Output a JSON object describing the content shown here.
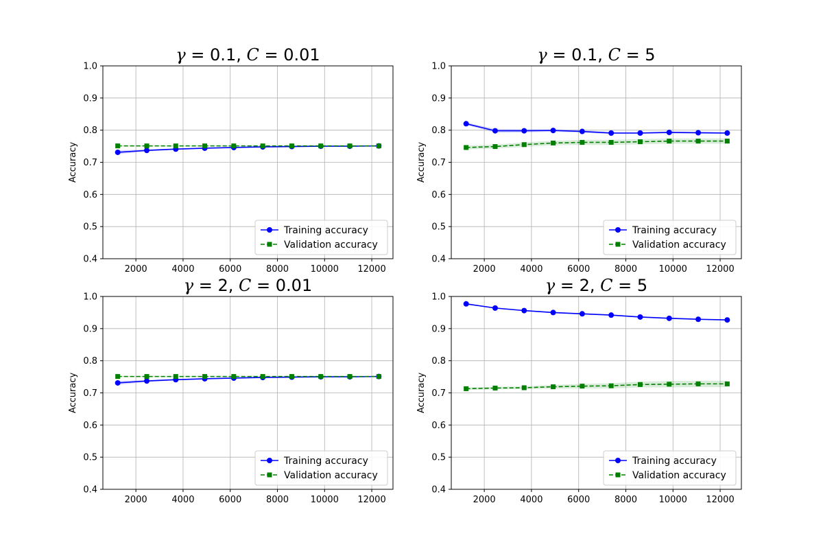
{
  "figure": {
    "background": "#ffffff",
    "grid": true,
    "legend_position": "lower-right"
  },
  "colors": {
    "training": "#0000ff",
    "training_band": "#0000ff",
    "validation": "#008000",
    "validation_band": "#008000",
    "grid": "#b0b0b0"
  },
  "chart_data": [
    {
      "type": "line",
      "title_parts": [
        {
          "t": "γ",
          "i": true
        },
        {
          "t": " = 0.1, ",
          "i": false
        },
        {
          "t": "C",
          "i": true
        },
        {
          "t": " = 0.01",
          "i": false
        }
      ],
      "xlabel": "",
      "ylabel": "Accuracy",
      "ylim": [
        0.4,
        1.0
      ],
      "xlim": [
        600,
        12900
      ],
      "x_ticks": [
        2000,
        4000,
        6000,
        8000,
        10000,
        12000
      ],
      "y_ticks": [
        0.4,
        0.5,
        0.6,
        0.7,
        0.8,
        0.9,
        1.0
      ],
      "x": [
        1230,
        2460,
        3690,
        4920,
        6150,
        7380,
        8610,
        9840,
        11070,
        12300
      ],
      "series": [
        {
          "name": "Training accuracy",
          "style": "solid",
          "marker": "circle",
          "values": [
            0.731,
            0.737,
            0.741,
            0.744,
            0.746,
            0.748,
            0.749,
            0.75,
            0.75,
            0.751
          ],
          "band": [
            0.006,
            0.003,
            0.002,
            0.002,
            0.001,
            0.001,
            0.001,
            0.001,
            0.001,
            0.001
          ]
        },
        {
          "name": "Validation accuracy",
          "style": "dashed",
          "marker": "square",
          "values": [
            0.751,
            0.751,
            0.751,
            0.751,
            0.751,
            0.751,
            0.751,
            0.751,
            0.751,
            0.751
          ],
          "band": [
            0.002,
            0.002,
            0.002,
            0.002,
            0.002,
            0.002,
            0.002,
            0.002,
            0.002,
            0.002
          ]
        }
      ]
    },
    {
      "type": "line",
      "title_parts": [
        {
          "t": "γ",
          "i": true
        },
        {
          "t": " = 0.1, ",
          "i": false
        },
        {
          "t": "C",
          "i": true
        },
        {
          "t": " = 5",
          "i": false
        }
      ],
      "xlabel": "",
      "ylabel": "Accuracy",
      "ylim": [
        0.4,
        1.0
      ],
      "xlim": [
        600,
        12900
      ],
      "x_ticks": [
        2000,
        4000,
        6000,
        8000,
        10000,
        12000
      ],
      "y_ticks": [
        0.4,
        0.5,
        0.6,
        0.7,
        0.8,
        0.9,
        1.0
      ],
      "x": [
        1230,
        2460,
        3690,
        4920,
        6150,
        7380,
        8610,
        9840,
        11070,
        12300
      ],
      "series": [
        {
          "name": "Training accuracy",
          "style": "solid",
          "marker": "circle",
          "values": [
            0.82,
            0.798,
            0.798,
            0.799,
            0.796,
            0.791,
            0.791,
            0.793,
            0.792,
            0.791
          ],
          "band": [
            0.004,
            0.006,
            0.005,
            0.004,
            0.004,
            0.003,
            0.003,
            0.003,
            0.003,
            0.003
          ]
        },
        {
          "name": "Validation accuracy",
          "style": "dashed",
          "marker": "square",
          "values": [
            0.746,
            0.749,
            0.755,
            0.76,
            0.762,
            0.762,
            0.764,
            0.766,
            0.766,
            0.766
          ],
          "band": [
            0.006,
            0.006,
            0.007,
            0.007,
            0.008,
            0.008,
            0.008,
            0.008,
            0.008,
            0.008
          ]
        }
      ]
    },
    {
      "type": "line",
      "title_parts": [
        {
          "t": "γ",
          "i": true
        },
        {
          "t": " = 2, ",
          "i": false
        },
        {
          "t": "C",
          "i": true
        },
        {
          "t": " = 0.01",
          "i": false
        }
      ],
      "xlabel": "",
      "ylabel": "Accuracy",
      "ylim": [
        0.4,
        1.0
      ],
      "xlim": [
        600,
        12900
      ],
      "x_ticks": [
        2000,
        4000,
        6000,
        8000,
        10000,
        12000
      ],
      "y_ticks": [
        0.4,
        0.5,
        0.6,
        0.7,
        0.8,
        0.9,
        1.0
      ],
      "x": [
        1230,
        2460,
        3690,
        4920,
        6150,
        7380,
        8610,
        9840,
        11070,
        12300
      ],
      "series": [
        {
          "name": "Training accuracy",
          "style": "solid",
          "marker": "circle",
          "values": [
            0.731,
            0.737,
            0.741,
            0.744,
            0.746,
            0.748,
            0.749,
            0.75,
            0.75,
            0.751
          ],
          "band": [
            0.006,
            0.003,
            0.002,
            0.002,
            0.001,
            0.001,
            0.001,
            0.001,
            0.001,
            0.001
          ]
        },
        {
          "name": "Validation accuracy",
          "style": "dashed",
          "marker": "square",
          "values": [
            0.751,
            0.751,
            0.751,
            0.751,
            0.751,
            0.751,
            0.751,
            0.751,
            0.751,
            0.751
          ],
          "band": [
            0.002,
            0.002,
            0.002,
            0.002,
            0.002,
            0.002,
            0.002,
            0.002,
            0.002,
            0.002
          ]
        }
      ]
    },
    {
      "type": "line",
      "title_parts": [
        {
          "t": "γ",
          "i": true
        },
        {
          "t": " = 2, ",
          "i": false
        },
        {
          "t": "C",
          "i": true
        },
        {
          "t": " = 5",
          "i": false
        }
      ],
      "xlabel": "",
      "ylabel": "Accuracy",
      "ylim": [
        0.4,
        1.0
      ],
      "xlim": [
        600,
        12900
      ],
      "x_ticks": [
        2000,
        4000,
        6000,
        8000,
        10000,
        12000
      ],
      "y_ticks": [
        0.4,
        0.5,
        0.6,
        0.7,
        0.8,
        0.9,
        1.0
      ],
      "x": [
        1230,
        2460,
        3690,
        4920,
        6150,
        7380,
        8610,
        9840,
        11070,
        12300
      ],
      "series": [
        {
          "name": "Training accuracy",
          "style": "solid",
          "marker": "circle",
          "values": [
            0.977,
            0.964,
            0.956,
            0.95,
            0.946,
            0.942,
            0.936,
            0.932,
            0.929,
            0.927
          ],
          "band": [
            0.002,
            0.002,
            0.002,
            0.002,
            0.002,
            0.002,
            0.002,
            0.002,
            0.002,
            0.002
          ]
        },
        {
          "name": "Validation accuracy",
          "style": "dashed",
          "marker": "square",
          "values": [
            0.713,
            0.715,
            0.716,
            0.719,
            0.721,
            0.722,
            0.726,
            0.727,
            0.728,
            0.728
          ],
          "band": [
            0.004,
            0.004,
            0.004,
            0.006,
            0.007,
            0.008,
            0.009,
            0.01,
            0.01,
            0.01
          ]
        }
      ]
    }
  ]
}
